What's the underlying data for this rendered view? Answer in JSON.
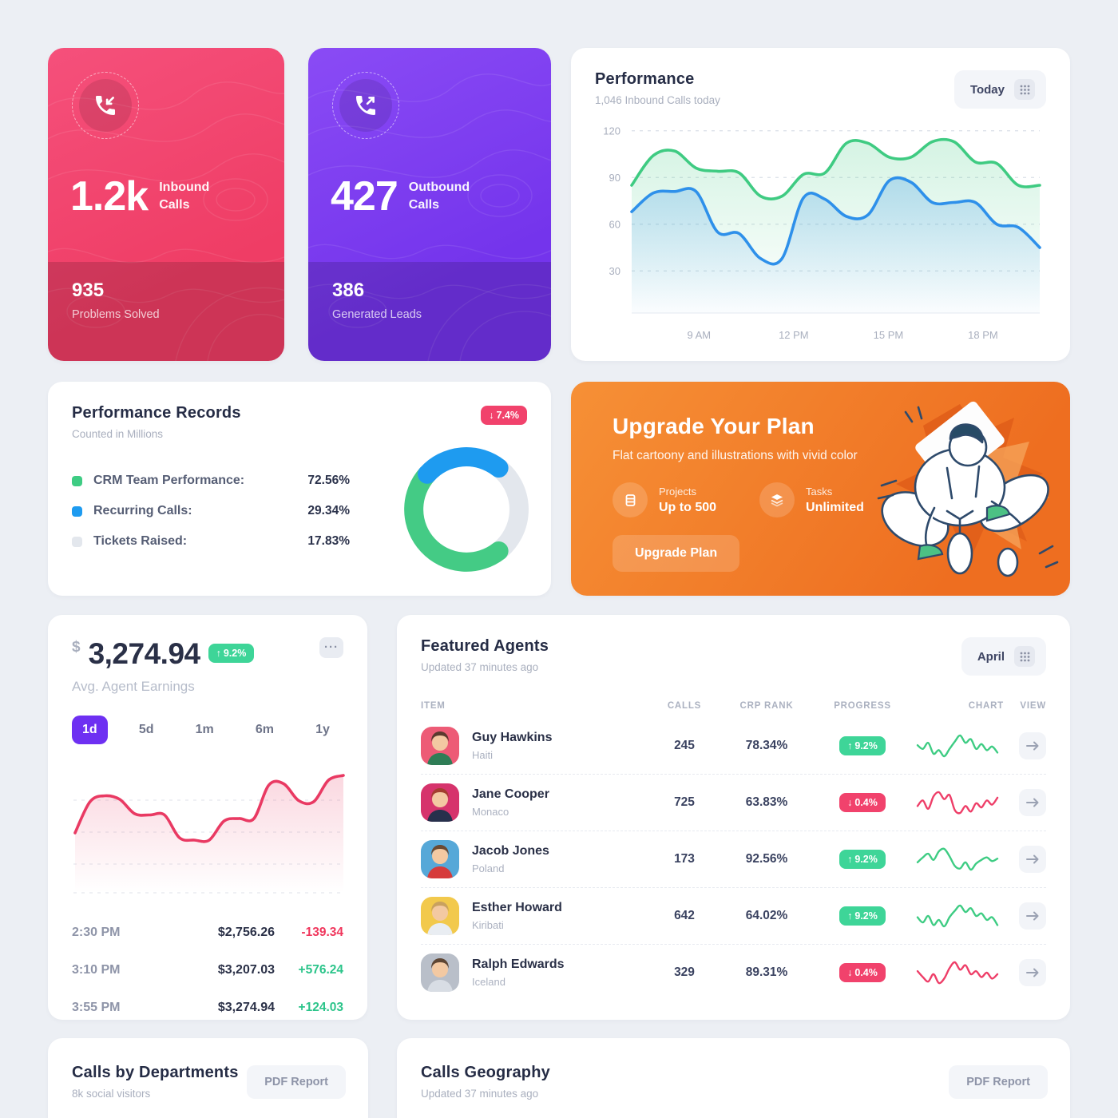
{
  "theme": {
    "accent_pink": "#F2426E",
    "accent_purple": "#7B3BF2",
    "accent_green": "#3ED598",
    "accent_blue": "#2E90EA",
    "accent_orange": "#F07A25",
    "accent_red": "#F1426C",
    "tab_active": "#6E30F2"
  },
  "stat_cards": [
    {
      "icon": "phone-inbound-icon",
      "value": "1.2k",
      "label_top": "Inbound",
      "label_bottom": "Calls",
      "secondary_value": "935",
      "secondary_label": "Problems Solved"
    },
    {
      "icon": "phone-outbound-icon",
      "value": "427",
      "label_top": "Outbound",
      "label_bottom": "Calls",
      "secondary_value": "386",
      "secondary_label": "Generated Leads"
    }
  ],
  "performance": {
    "title": "Performance",
    "subtitle": "1,046 Inbound Calls today",
    "range_button": "Today",
    "chart_data": {
      "type": "area",
      "ylim": [
        0,
        120
      ],
      "yticks": [
        "120",
        "90",
        "60",
        "30"
      ],
      "ytick_values": [
        120,
        90,
        60,
        30
      ],
      "xticks": [
        "9 AM",
        "12 PM",
        "15 PM",
        "18 PM"
      ],
      "grid": "dashed",
      "series": [
        {
          "name": "green",
          "color": "#3FCB82",
          "values": [
            85,
            104,
            107,
            96,
            94,
            93,
            78,
            78,
            92,
            93,
            112,
            112,
            103,
            103,
            113,
            113,
            100,
            99,
            85,
            85
          ]
        },
        {
          "name": "blue",
          "color": "#2E90EA",
          "values": [
            68,
            80,
            81,
            81,
            55,
            54,
            38,
            38,
            77,
            76,
            65,
            66,
            88,
            87,
            74,
            74,
            74,
            60,
            58,
            45
          ]
        }
      ]
    }
  },
  "records": {
    "title": "Performance Records",
    "subtitle": "Counted in Millions",
    "badge": {
      "arrow": "↓",
      "value": "7.4%",
      "color": "#F1426C"
    },
    "legend": [
      {
        "label": "CRM Team Performance:",
        "value": "72.56%",
        "color": "#3ECC83"
      },
      {
        "label": "Recurring Calls:",
        "value": "29.34%",
        "color": "#1E9BF0"
      },
      {
        "label": "Tickets Raised:",
        "value": "17.83%",
        "color": "#E3E7ED"
      }
    ],
    "chart_data": {
      "type": "donut",
      "segments": [
        {
          "label": "CRM Team Performance",
          "value": 72.56,
          "color": "#44CB85",
          "arc_start_deg": 142,
          "arc_sweep_deg": 170
        },
        {
          "label": "Recurring Calls",
          "value": 29.34,
          "color": "#1E9BF0",
          "arc_start_deg": 312,
          "arc_sweep_deg": 86
        },
        {
          "label": "Tickets Raised",
          "value": 17.83,
          "color": "#E3E7ED",
          "arc_start_deg": 38,
          "arc_sweep_deg": 104
        }
      ]
    }
  },
  "upgrade": {
    "title": "Upgrade Your Plan",
    "subtitle": "Flat cartoony and illustrations with vivid color",
    "features": [
      {
        "icon": "projects-icon",
        "label": "Projects",
        "value": "Up to 500"
      },
      {
        "icon": "tasks-icon",
        "label": "Tasks",
        "value": "Unlimited"
      }
    ],
    "button_label": "Upgrade Plan"
  },
  "earnings": {
    "currency": "$",
    "amount": "3,274.94",
    "badge": {
      "arrow": "↑",
      "value": "9.2%",
      "color": "#3ED598"
    },
    "more_button": "···",
    "caption": "Avg. Agent Earnings",
    "tabs": [
      {
        "label": "1d",
        "active": true
      },
      {
        "label": "5d",
        "active": false
      },
      {
        "label": "1m",
        "active": false
      },
      {
        "label": "6m",
        "active": false
      },
      {
        "label": "1y",
        "active": false
      }
    ],
    "chart_data": {
      "type": "area",
      "color": "#E93A63",
      "grid": "dashed",
      "values": [
        52,
        78,
        83,
        80,
        68,
        67,
        67,
        48,
        46,
        46,
        62,
        64,
        64,
        92,
        93,
        79,
        78,
        96,
        100
      ]
    },
    "rows": [
      {
        "time": "2:30 PM",
        "value": "$2,756.26",
        "delta": "-139.34",
        "delta_color": "#F0365C"
      },
      {
        "time": "3:10 PM",
        "value": "$3,207.03",
        "delta": "+576.24",
        "delta_color": "#2BC48A"
      },
      {
        "time": "3:55 PM",
        "value": "$3,274.94",
        "delta": "+124.03",
        "delta_color": "#2BC48A"
      }
    ]
  },
  "agents": {
    "title": "Featured Agents",
    "subtitle": "Updated 37 minutes ago",
    "range_button": "April",
    "columns": [
      "ITEM",
      "CALLS",
      "CRP RANK",
      "PROGRESS",
      "CHART",
      "VIEW"
    ],
    "rows": [
      {
        "name": "Guy Hawkins",
        "country": "Haiti",
        "calls": "245",
        "crp_rank": "78.34%",
        "badge": {
          "arrow": "↑",
          "value": "9.2%",
          "color": "#3ED598"
        },
        "spark_color": "#3ECC83",
        "spark": [
          16,
          13,
          18,
          9,
          12,
          7,
          13,
          19,
          24,
          18,
          21,
          13,
          17,
          12,
          15,
          10
        ],
        "avatar": {
          "bg": "#ED5B76",
          "hair": "#5A3A2E",
          "shirt": "#2F7D56"
        }
      },
      {
        "name": "Jane Cooper",
        "country": "Monaco",
        "calls": "725",
        "crp_rank": "63.83%",
        "badge": {
          "arrow": "↓",
          "value": "0.4%",
          "color": "#F1426C"
        },
        "spark_color": "#EE3E68",
        "spark": [
          12,
          16,
          10,
          19,
          22,
          17,
          20,
          9,
          7,
          12,
          8,
          14,
          11,
          16,
          13,
          18
        ],
        "avatar": {
          "bg": "#D6336C",
          "hair": "#A33E2F",
          "shirt": "#27304C"
        }
      },
      {
        "name": "Jacob Jones",
        "country": "Poland",
        "calls": "173",
        "crp_rank": "92.56%",
        "badge": {
          "arrow": "↑",
          "value": "9.2%",
          "color": "#3ED598"
        },
        "spark_color": "#3ECC83",
        "spark": [
          13,
          17,
          20,
          15,
          22,
          24,
          18,
          10,
          8,
          13,
          7,
          12,
          15,
          17,
          14,
          16
        ],
        "avatar": {
          "bg": "#56A8D8",
          "hair": "#6B4A33",
          "shirt": "#D63B3B"
        }
      },
      {
        "name": "Esther Howard",
        "country": "Kiribati",
        "calls": "642",
        "crp_rank": "64.02%",
        "badge": {
          "arrow": "↑",
          "value": "9.2%",
          "color": "#3ED598"
        },
        "spark_color": "#3ECC83",
        "spark": [
          15,
          11,
          16,
          9,
          13,
          8,
          15,
          20,
          24,
          19,
          22,
          16,
          18,
          13,
          15,
          9
        ],
        "avatar": {
          "bg": "#F2C94C",
          "hair": "#C9A15F",
          "shirt": "#E9EDF2"
        }
      },
      {
        "name": "Ralph Edwards",
        "country": "Iceland",
        "calls": "329",
        "crp_rank": "89.31%",
        "badge": {
          "arrow": "↓",
          "value": "0.4%",
          "color": "#F1426C"
        },
        "spark_color": "#EE3E68",
        "spark": [
          16,
          12,
          9,
          14,
          8,
          11,
          18,
          22,
          17,
          20,
          14,
          16,
          12,
          15,
          11,
          14
        ],
        "avatar": {
          "bg": "#B9BFC9",
          "hair": "#5E4633",
          "shirt": "#D8DDE4"
        }
      }
    ]
  },
  "departments": {
    "title": "Calls by Departments",
    "subtitle": "8k social visitors",
    "button_label": "PDF Report"
  },
  "geography": {
    "title": "Calls Geography",
    "subtitle": "Updated 37 minutes ago",
    "button_label": "PDF Report"
  }
}
